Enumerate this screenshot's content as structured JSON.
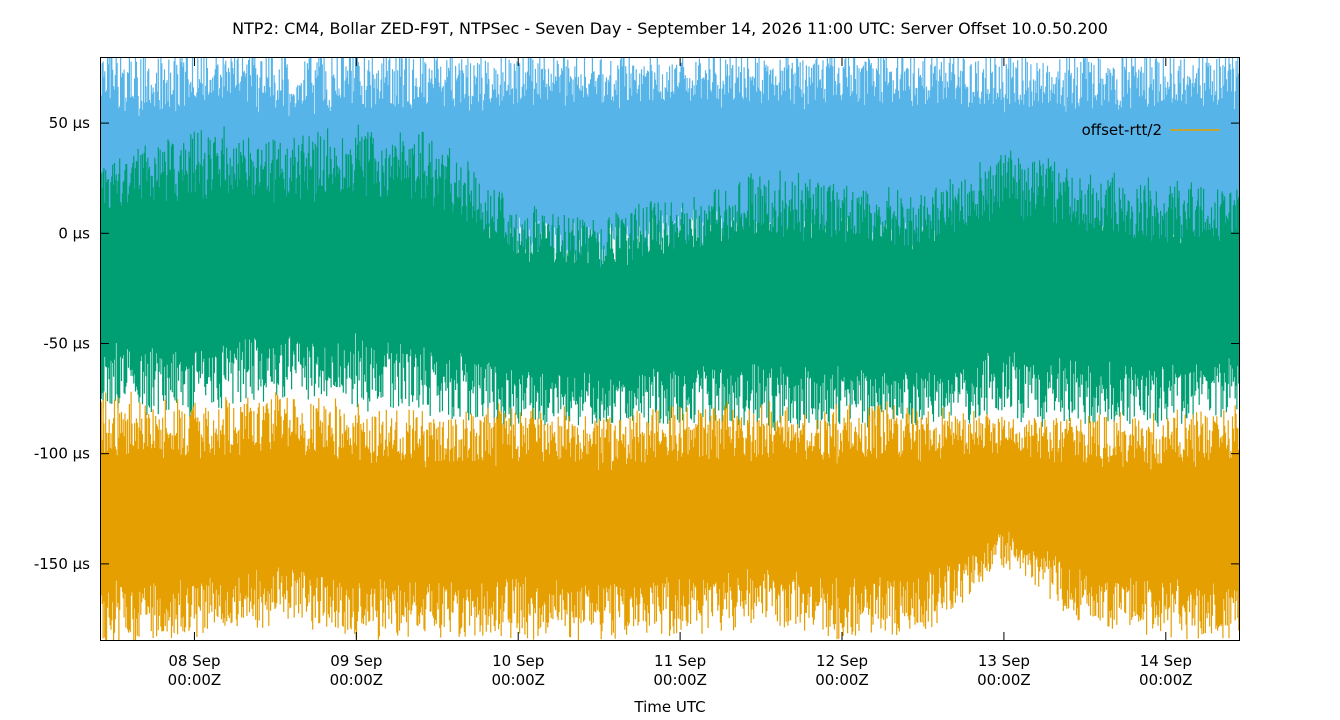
{
  "chart_data": {
    "type": "line",
    "title": "NTP2: CM4, Bollar ZED-F9T, NTPSec - Seven Day - September 14, 2026 11:00 UTC: Server Offset 10.0.50.200",
    "xlabel": "Time UTC",
    "ylabel": "",
    "x_range": [
      "2026-09-07T10:00Z",
      "2026-09-14T11:00Z"
    ],
    "ylim": [
      -185,
      80
    ],
    "y_unit": "µs",
    "y_ticks": [
      {
        "value": 50,
        "label": "50 µs"
      },
      {
        "value": 0,
        "label": "0 µs"
      },
      {
        "value": -50,
        "label": "-50 µs"
      },
      {
        "value": -100,
        "label": "-100 µs"
      },
      {
        "value": -150,
        "label": "-150 µs"
      }
    ],
    "x_ticks": [
      {
        "value": "2026-09-08T00:00Z",
        "day": "08 Sep",
        "time": "00:00Z"
      },
      {
        "value": "2026-09-09T00:00Z",
        "day": "09 Sep",
        "time": "00:00Z"
      },
      {
        "value": "2026-09-10T00:00Z",
        "day": "10 Sep",
        "time": "00:00Z"
      },
      {
        "value": "2026-09-11T00:00Z",
        "day": "11 Sep",
        "time": "00:00Z"
      },
      {
        "value": "2026-09-12T00:00Z",
        "day": "12 Sep",
        "time": "00:00Z"
      },
      {
        "value": "2026-09-13T00:00Z",
        "day": "13 Sep",
        "time": "00:00Z"
      },
      {
        "value": "2026-09-14T00:00Z",
        "day": "14 Sep",
        "time": "00:00Z"
      }
    ],
    "legend_position": "top-right",
    "grid": false,
    "series": [
      {
        "name": "",
        "color": "#56b4e9",
        "x": [
          "2026-09-07T10:00Z",
          "2026-09-08T00:00Z",
          "2026-09-08T12:00Z",
          "2026-09-09T00:00Z",
          "2026-09-09T12:00Z",
          "2026-09-10T00:00Z",
          "2026-09-10T12:00Z",
          "2026-09-11T00:00Z",
          "2026-09-11T12:00Z",
          "2026-09-12T00:00Z",
          "2026-09-12T12:00Z",
          "2026-09-13T00:00Z",
          "2026-09-13T12:00Z",
          "2026-09-14T00:00Z",
          "2026-09-14T11:00Z"
        ],
        "min": [
          -40,
          -25,
          -30,
          -25,
          -30,
          -15,
          -20,
          -10,
          -15,
          -15,
          -15,
          -30,
          -20,
          -20,
          -20
        ],
        "max": [
          80,
          80,
          80,
          80,
          80,
          80,
          80,
          80,
          80,
          80,
          80,
          80,
          80,
          80,
          80
        ]
      },
      {
        "name": "",
        "color": "#009e73",
        "x": [
          "2026-09-07T10:00Z",
          "2026-09-08T00:00Z",
          "2026-09-08T12:00Z",
          "2026-09-09T00:00Z",
          "2026-09-09T12:00Z",
          "2026-09-10T00:00Z",
          "2026-09-10T12:00Z",
          "2026-09-11T00:00Z",
          "2026-09-11T12:00Z",
          "2026-09-12T00:00Z",
          "2026-09-12T12:00Z",
          "2026-09-13T00:00Z",
          "2026-09-13T12:00Z",
          "2026-09-14T00:00Z",
          "2026-09-14T11:00Z"
        ],
        "min": [
          -75,
          -80,
          -70,
          -75,
          -80,
          -85,
          -85,
          -85,
          -85,
          -85,
          -85,
          -80,
          -85,
          -85,
          -80
        ],
        "max": [
          30,
          45,
          40,
          45,
          40,
          10,
          5,
          15,
          25,
          20,
          15,
          35,
          25,
          20,
          20
        ]
      },
      {
        "name": "offset-rtt/2",
        "color": "#e69f00",
        "x": [
          "2026-09-07T10:00Z",
          "2026-09-08T00:00Z",
          "2026-09-08T12:00Z",
          "2026-09-09T00:00Z",
          "2026-09-09T12:00Z",
          "2026-09-10T00:00Z",
          "2026-09-10T12:00Z",
          "2026-09-11T00:00Z",
          "2026-09-11T12:00Z",
          "2026-09-12T00:00Z",
          "2026-09-12T12:00Z",
          "2026-09-13T00:00Z",
          "2026-09-13T12:00Z",
          "2026-09-14T00:00Z",
          "2026-09-14T11:00Z"
        ],
        "min": [
          -185,
          -180,
          -175,
          -180,
          -180,
          -180,
          -180,
          -180,
          -175,
          -180,
          -180,
          -150,
          -175,
          -180,
          -185
        ],
        "max": [
          -75,
          -80,
          -75,
          -80,
          -85,
          -80,
          -85,
          -80,
          -80,
          -80,
          -80,
          -85,
          -85,
          -85,
          -80
        ]
      }
    ]
  }
}
